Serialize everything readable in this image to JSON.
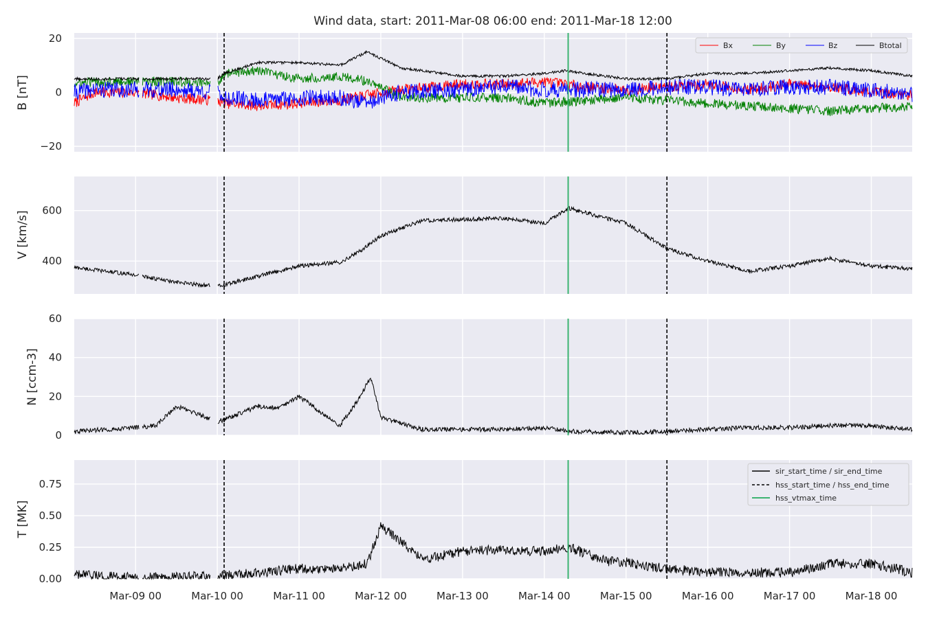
{
  "chart_data": {
    "type": "line",
    "title": "Wind data, start: 2011-Mar-08 06:00  end: 2011-Mar-18 12:00",
    "x_range": [
      "2011-03-08T06:00",
      "2011-03-18T12:00"
    ],
    "x_ticks": [
      "2011-03-09T00:00",
      "2011-03-10T00:00",
      "2011-03-11T00:00",
      "2011-03-12T00:00",
      "2011-03-13T00:00",
      "2011-03-14T00:00",
      "2011-03-15T00:00",
      "2011-03-16T00:00",
      "2011-03-17T00:00",
      "2011-03-18T00:00"
    ],
    "x_tick_labels": [
      "Mar-09 00",
      "Mar-10 00",
      "Mar-11 00",
      "Mar-12 00",
      "Mar-13 00",
      "Mar-14 00",
      "Mar-15 00",
      "Mar-16 00",
      "Mar-17 00",
      "Mar-18 00"
    ],
    "grid": true,
    "colors": {
      "background": "#eaeaf2",
      "grid": "#ffffff",
      "Bx": "#ff0000",
      "By": "#008000",
      "Bz": "#0000ff",
      "Btotal": "#000000",
      "hss_vtmax": "#3cb371"
    },
    "events": {
      "hss_start_time": "2011-03-10T02:00",
      "hss_end_time": "2011-03-15T12:00",
      "hss_vtmax_time": "2011-03-14T07:00"
    },
    "data_gaps": [
      [
        "2011-03-09T01:00",
        "2011-03-09T02:00"
      ],
      [
        "2011-03-09T22:00",
        "2011-03-10T00:00"
      ]
    ],
    "panels": [
      {
        "id": "B",
        "ylabel": "B [nT]",
        "ylim": [
          -22,
          22
        ],
        "yticks": [
          20,
          0,
          -20
        ],
        "ytick_labels": [
          "20",
          "0",
          "−20"
        ],
        "legend": {
          "position": "upper right",
          "entries": [
            "Bx",
            "By",
            "Bz",
            "Btotal"
          ]
        },
        "series": [
          {
            "name": "Bx",
            "times": [
              "2011-03-08T06:00",
              "2011-03-08T12:00",
              "2011-03-09T00:00",
              "2011-03-09T12:00",
              "2011-03-10T00:00",
              "2011-03-10T02:00",
              "2011-03-10T12:00",
              "2011-03-11T00:00",
              "2011-03-11T12:00",
              "2011-03-11T20:00",
              "2011-03-12T06:00",
              "2011-03-13T00:00",
              "2011-03-13T12:00",
              "2011-03-14T00:00",
              "2011-03-14T12:00",
              "2011-03-15T00:00",
              "2011-03-15T12:00",
              "2011-03-16T00:00",
              "2011-03-16T12:00",
              "2011-03-17T00:00",
              "2011-03-17T12:00",
              "2011-03-18T00:00",
              "2011-03-18T12:00"
            ],
            "values": [
              -4,
              0,
              0,
              -2,
              -3,
              -4,
              -5,
              -4,
              -3,
              -1,
              1,
              3,
              3,
              4,
              2,
              1,
              2,
              3,
              1,
              3,
              2,
              0,
              -1
            ],
            "noise": 2.0
          },
          {
            "name": "By",
            "times": [
              "2011-03-08T06:00",
              "2011-03-08T12:00",
              "2011-03-09T00:00",
              "2011-03-09T12:00",
              "2011-03-10T00:00",
              "2011-03-10T02:00",
              "2011-03-10T12:00",
              "2011-03-11T00:00",
              "2011-03-11T12:00",
              "2011-03-11T20:00",
              "2011-03-12T06:00",
              "2011-03-13T00:00",
              "2011-03-13T12:00",
              "2011-03-14T00:00",
              "2011-03-14T12:00",
              "2011-03-15T00:00",
              "2011-03-15T12:00",
              "2011-03-16T00:00",
              "2011-03-16T12:00",
              "2011-03-17T00:00",
              "2011-03-17T12:00",
              "2011-03-18T00:00",
              "2011-03-18T12:00"
            ],
            "values": [
              3,
              4,
              4,
              4,
              3,
              7,
              8,
              5,
              6,
              4,
              -2,
              -2,
              -2,
              -4,
              -3,
              -2,
              -3,
              -4,
              -5,
              -6,
              -7,
              -6,
              -5
            ],
            "noise": 1.8
          },
          {
            "name": "Bz",
            "times": [
              "2011-03-08T06:00",
              "2011-03-08T12:00",
              "2011-03-09T00:00",
              "2011-03-09T12:00",
              "2011-03-10T00:00",
              "2011-03-10T02:00",
              "2011-03-10T12:00",
              "2011-03-11T00:00",
              "2011-03-11T12:00",
              "2011-03-11T20:00",
              "2011-03-12T06:00",
              "2011-03-13T00:00",
              "2011-03-13T12:00",
              "2011-03-14T00:00",
              "2011-03-14T12:00",
              "2011-03-15T00:00",
              "2011-03-15T12:00",
              "2011-03-16T00:00",
              "2011-03-16T12:00",
              "2011-03-17T00:00",
              "2011-03-17T12:00",
              "2011-03-18T00:00",
              "2011-03-18T12:00"
            ],
            "values": [
              0,
              1,
              1,
              1,
              0,
              -2,
              -3,
              -2,
              -2,
              -4,
              0,
              1,
              2,
              1,
              1,
              1,
              2,
              2,
              1,
              2,
              2,
              1,
              -1
            ],
            "noise": 3.0
          },
          {
            "name": "Btotal",
            "times": [
              "2011-03-08T06:00",
              "2011-03-09T00:00",
              "2011-03-09T12:00",
              "2011-03-10T00:00",
              "2011-03-10T02:00",
              "2011-03-10T12:00",
              "2011-03-11T00:00",
              "2011-03-11T12:00",
              "2011-03-11T20:00",
              "2011-03-12T06:00",
              "2011-03-13T00:00",
              "2011-03-13T12:00",
              "2011-03-14T00:00",
              "2011-03-14T06:00",
              "2011-03-15T00:00",
              "2011-03-15T12:00",
              "2011-03-16T00:00",
              "2011-03-16T12:00",
              "2011-03-17T00:00",
              "2011-03-17T12:00",
              "2011-03-18T00:00",
              "2011-03-18T12:00"
            ],
            "values": [
              5,
              5,
              5,
              5,
              7,
              11,
              11,
              10,
              15,
              9,
              6,
              6,
              7,
              8,
              5,
              5,
              7,
              7,
              8,
              9,
              8,
              6
            ],
            "noise": 0.5
          }
        ]
      },
      {
        "id": "V",
        "ylabel": "V [km/s]",
        "ylim": [
          270,
          735
        ],
        "yticks": [
          600,
          400
        ],
        "ytick_labels": [
          "600",
          "400"
        ],
        "series": [
          {
            "name": "V",
            "times": [
              "2011-03-08T06:00",
              "2011-03-09T00:00",
              "2011-03-09T12:00",
              "2011-03-10T00:00",
              "2011-03-10T02:00",
              "2011-03-10T12:00",
              "2011-03-11T00:00",
              "2011-03-11T12:00",
              "2011-03-11T18:00",
              "2011-03-12T00:00",
              "2011-03-12T12:00",
              "2011-03-13T00:00",
              "2011-03-13T12:00",
              "2011-03-14T00:00",
              "2011-03-14T07:00",
              "2011-03-14T18:00",
              "2011-03-15T00:00",
              "2011-03-15T12:00",
              "2011-03-16T00:00",
              "2011-03-16T12:00",
              "2011-03-17T00:00",
              "2011-03-17T12:00",
              "2011-03-18T00:00",
              "2011-03-18T12:00"
            ],
            "values": [
              375,
              345,
              315,
              300,
              305,
              340,
              380,
              395,
              440,
              500,
              560,
              565,
              570,
              550,
              610,
              570,
              550,
              450,
              400,
              360,
              380,
              410,
              380,
              370
            ],
            "noise": 8
          }
        ]
      },
      {
        "id": "N",
        "ylabel": "N [ccm-3]",
        "ylim": [
          0,
          60
        ],
        "yticks": [
          60,
          40,
          20,
          0
        ],
        "ytick_labels": [
          "60",
          "40",
          "20",
          "0"
        ],
        "series": [
          {
            "name": "N",
            "times": [
              "2011-03-08T06:00",
              "2011-03-09T00:00",
              "2011-03-09T06:00",
              "2011-03-09T12:00",
              "2011-03-10T00:00",
              "2011-03-10T02:00",
              "2011-03-10T12:00",
              "2011-03-10T18:00",
              "2011-03-11T00:00",
              "2011-03-11T12:00",
              "2011-03-11T18:00",
              "2011-03-11T21:00",
              "2011-03-12T00:00",
              "2011-03-12T12:00",
              "2011-03-13T12:00",
              "2011-03-14T00:00",
              "2011-03-14T07:00",
              "2011-03-15T00:00",
              "2011-03-15T12:00",
              "2011-03-16T12:00",
              "2011-03-17T00:00",
              "2011-03-17T12:00",
              "2011-03-18T00:00",
              "2011-03-18T12:00"
            ],
            "values": [
              2,
              4,
              5,
              15,
              7,
              8,
              15,
              14,
              20,
              5,
              20,
              30,
              9,
              3,
              3,
              4,
              2,
              1.5,
              2,
              4,
              4,
              5,
              5,
              3
            ],
            "noise": 1.2
          }
        ]
      },
      {
        "id": "T",
        "ylabel": "T [MK]",
        "ylim": [
          0,
          0.94
        ],
        "yticks": [
          0.75,
          0.5,
          0.25,
          0.0
        ],
        "ytick_labels": [
          "0.75",
          "0.50",
          "0.25",
          "0.00"
        ],
        "legend": {
          "position": "upper right",
          "entries": [
            "sir_start_time / sir_end_time",
            "hss_start_time / hss_end_time",
            "hss_vtmax_time"
          ]
        },
        "series": [
          {
            "name": "T",
            "times": [
              "2011-03-08T06:00",
              "2011-03-09T00:00",
              "2011-03-10T00:00",
              "2011-03-10T12:00",
              "2011-03-11T00:00",
              "2011-03-11T12:00",
              "2011-03-11T20:00",
              "2011-03-12T00:00",
              "2011-03-12T06:00",
              "2011-03-12T12:00",
              "2011-03-13T00:00",
              "2011-03-13T12:00",
              "2011-03-14T00:00",
              "2011-03-14T07:00",
              "2011-03-14T18:00",
              "2011-03-15T00:00",
              "2011-03-15T12:00",
              "2011-03-16T00:00",
              "2011-03-16T12:00",
              "2011-03-17T00:00",
              "2011-03-17T12:00",
              "2011-03-18T00:00",
              "2011-03-18T12:00"
            ],
            "values": [
              0.03,
              0.01,
              0.02,
              0.05,
              0.08,
              0.08,
              0.12,
              0.42,
              0.3,
              0.15,
              0.22,
              0.23,
              0.22,
              0.25,
              0.14,
              0.13,
              0.08,
              0.05,
              0.05,
              0.05,
              0.12,
              0.12,
              0.05
            ],
            "noise": 0.04
          }
        ]
      }
    ]
  }
}
